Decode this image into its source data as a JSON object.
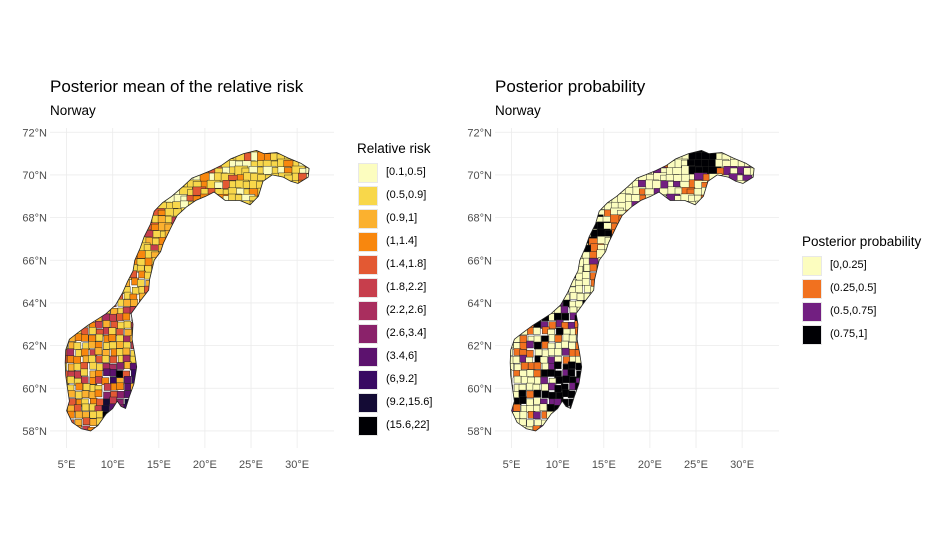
{
  "panels": [
    {
      "title": "Posterior mean of the relative risk",
      "subtitle": "Norway",
      "legend_title": "Relative risk",
      "legend": [
        {
          "label": "[0.1,0.5]",
          "color": "#fcfdbf"
        },
        {
          "label": "(0.5,0.9]",
          "color": "#f8d74a"
        },
        {
          "label": "(0.9,1]",
          "color": "#fbb12f"
        },
        {
          "label": "(1,1.4]",
          "color": "#f8870e"
        },
        {
          "label": "(1.4,1.8]",
          "color": "#e35933"
        },
        {
          "label": "(1.8,2.2]",
          "color": "#c73e4c"
        },
        {
          "label": "(2.2,2.6]",
          "color": "#a92e5e"
        },
        {
          "label": "(2.6,3.4]",
          "color": "#8a226a"
        },
        {
          "label": "(3.4,6]",
          "color": "#5c126e"
        },
        {
          "label": "(6,9.2]",
          "color": "#380962"
        },
        {
          "label": "(9.2,15.6]",
          "color": "#140b35"
        },
        {
          "label": "(15.6,22]",
          "color": "#000004"
        }
      ],
      "x_ticks": [
        "5°E",
        "10°E",
        "15°E",
        "20°E",
        "25°E",
        "30°E"
      ],
      "y_ticks": [
        "58°N",
        "60°N",
        "62°N",
        "64°N",
        "66°N",
        "68°N",
        "70°N",
        "72°N"
      ]
    },
    {
      "title": "Posterior probability",
      "subtitle": "Norway",
      "legend_title": "Posterior probability",
      "legend": [
        {
          "label": "[0,0.25]",
          "color": "#fcfdbf"
        },
        {
          "label": "(0.25,0.5]",
          "color": "#f1711f"
        },
        {
          "label": "(0.5,0.75]",
          "color": "#721f81"
        },
        {
          "label": "(0.75,1]",
          "color": "#000004"
        }
      ],
      "x_ticks": [
        "5°E",
        "10°E",
        "15°E",
        "20°E",
        "25°E",
        "30°E"
      ],
      "y_ticks": [
        "58°N",
        "60°N",
        "62°N",
        "64°N",
        "66°N",
        "68°N",
        "70°N",
        "72°N"
      ]
    }
  ],
  "axis": {
    "lon_values": [
      5,
      10,
      15,
      20,
      25,
      30
    ],
    "lat_values": [
      58,
      60,
      62,
      64,
      66,
      68,
      70,
      72
    ],
    "lon_range": [
      3.2,
      34
    ],
    "lat_range": [
      57.2,
      72.2
    ],
    "grid": true
  }
}
